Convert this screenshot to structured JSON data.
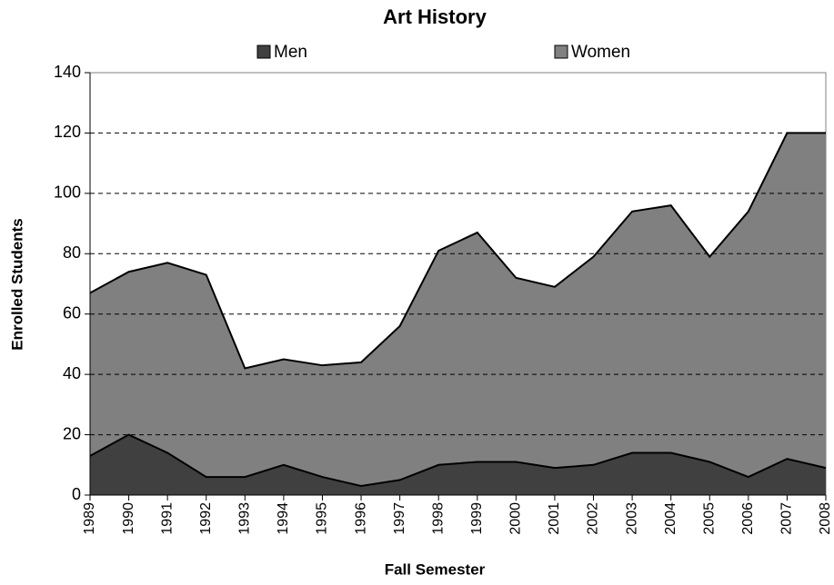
{
  "chart_data": {
    "type": "stacked_area",
    "title": "Art History",
    "x_label": "Fall Semester",
    "y_label": "Enrolled Students",
    "categories": [
      "1989",
      "1990",
      "1991",
      "1992",
      "1993",
      "1994",
      "1995",
      "1996",
      "1997",
      "1998",
      "1999",
      "2000",
      "2001",
      "2002",
      "2003",
      "2004",
      "2005",
      "2006",
      "2007",
      "2008"
    ],
    "series": [
      {
        "name": "Men",
        "color": "#404040",
        "values": [
          13,
          20,
          14,
          6,
          6,
          10,
          6,
          3,
          5,
          10,
          11,
          11,
          9,
          10,
          14,
          14,
          11,
          6,
          12,
          9
        ]
      },
      {
        "name": "Women",
        "color": "#808080",
        "values": [
          54,
          54,
          63,
          67,
          36,
          35,
          37,
          41,
          51,
          71,
          76,
          61,
          60,
          69,
          80,
          82,
          68,
          88,
          108,
          111
        ]
      }
    ],
    "ylim": [
      0,
      140
    ],
    "yticks": [
      0,
      20,
      40,
      60,
      80,
      100,
      120,
      140
    ],
    "grid": true,
    "legend": "top"
  }
}
